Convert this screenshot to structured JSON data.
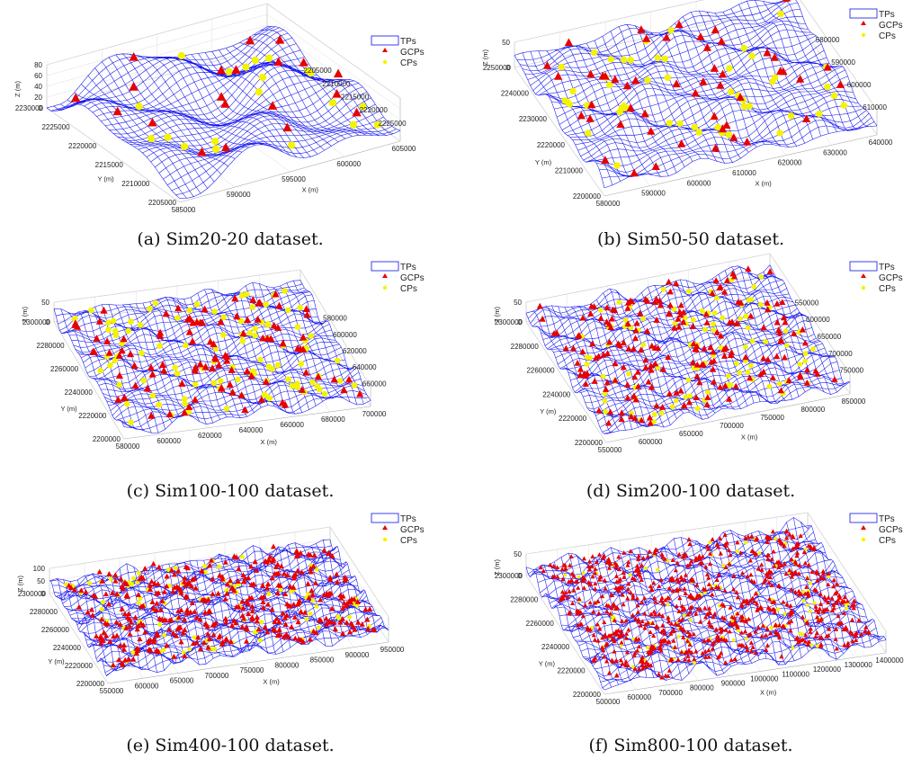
{
  "legend": {
    "tp": "TPs",
    "gcp": "GCPs",
    "cp": "CPs"
  },
  "colors": {
    "mesh": "#1010ee",
    "gcp": "#e80000",
    "cp": "#f4f400",
    "axis": "#222222"
  },
  "chart_data": [
    {
      "type": "surface3d",
      "caption": "(a) Sim20-20 dataset.",
      "xlabel": "X (m)",
      "ylabel": "Y (m)",
      "zlabel": "Z (m)",
      "xticks": [
        585000,
        590000,
        595000,
        600000,
        605000
      ],
      "yticks": [
        2205000,
        2210000,
        2215000,
        2220000,
        2225000,
        2230000
      ],
      "zticks": [
        0,
        20,
        40,
        60,
        80
      ],
      "ryticks": [
        2205000,
        2210000,
        2215000,
        2220000,
        2225000
      ],
      "xlim": [
        585000,
        605000
      ],
      "ylim": [
        2205000,
        2230000
      ],
      "zlim": [
        0,
        80
      ],
      "gcp_count": 20,
      "cp_count": 20,
      "grid": true,
      "legend": "top-right"
    },
    {
      "type": "surface3d",
      "caption": "(b) Sim50-50 dataset.",
      "xlabel": "X (m)",
      "ylabel": "Y (m)",
      "zlabel": "Z (m)",
      "xticks": [
        580000,
        590000,
        600000,
        610000,
        620000,
        630000,
        640000
      ],
      "yticks": [
        2200000,
        2210000,
        2220000,
        2230000,
        2240000,
        2250000
      ],
      "zticks": [
        0,
        50
      ],
      "ryticks": [
        580000,
        590000,
        600000,
        610000
      ],
      "xlim": [
        580000,
        640000
      ],
      "ylim": [
        2200000,
        2250000
      ],
      "zlim": [
        0,
        50
      ],
      "gcp_count": 50,
      "cp_count": 50,
      "grid": true,
      "legend": "top-right"
    },
    {
      "type": "surface3d",
      "caption": "(c) Sim100-100 dataset.",
      "xlabel": "X (m)",
      "ylabel": "Y (m)",
      "zlabel": "Z (m)",
      "xticks": [
        580000,
        600000,
        620000,
        640000,
        660000,
        680000,
        700000
      ],
      "yticks": [
        2200000,
        2220000,
        2240000,
        2260000,
        2280000,
        2300000
      ],
      "zticks": [
        0,
        50
      ],
      "ryticks": [
        580000,
        600000,
        620000,
        640000,
        660000
      ],
      "xlim": [
        580000,
        700000
      ],
      "ylim": [
        2200000,
        2300000
      ],
      "zlim": [
        0,
        50
      ],
      "gcp_count": 100,
      "cp_count": 100,
      "grid": true,
      "legend": "top-right"
    },
    {
      "type": "surface3d",
      "caption": "(d) Sim200-100 dataset.",
      "xlabel": "X (m)",
      "ylabel": "Y (m)",
      "zlabel": "Z (m)",
      "xticks": [
        550000,
        600000,
        650000,
        700000,
        750000,
        800000,
        850000
      ],
      "yticks": [
        2200000,
        2220000,
        2240000,
        2260000,
        2280000,
        2300000
      ],
      "zticks": [
        0,
        50
      ],
      "ryticks": [
        550000,
        600000,
        650000,
        700000,
        750000
      ],
      "xlim": [
        550000,
        850000
      ],
      "ylim": [
        2200000,
        2300000
      ],
      "zlim": [
        0,
        50
      ],
      "gcp_count": 200,
      "cp_count": 100,
      "grid": true,
      "legend": "top-right"
    },
    {
      "type": "surface3d",
      "caption": "(e) Sim400-100 dataset.",
      "xlabel": "X (m)",
      "ylabel": "Y (m)",
      "zlabel": "Z (m)",
      "xticks": [
        550000,
        600000,
        650000,
        700000,
        750000,
        800000,
        850000,
        900000,
        950000
      ],
      "yticks": [
        2200000,
        2220000,
        2240000,
        2260000,
        2280000,
        2300000
      ],
      "zticks": [
        0,
        50,
        100
      ],
      "ryticks": [],
      "xlim": [
        550000,
        950000
      ],
      "ylim": [
        2200000,
        2300000
      ],
      "zlim": [
        0,
        100
      ],
      "gcp_count": 400,
      "cp_count": 100,
      "grid": true,
      "legend": "top-right"
    },
    {
      "type": "surface3d",
      "caption": "(f) Sim800-100 dataset.",
      "xlabel": "X (m)",
      "ylabel": "Y (m)",
      "zlabel": "Z (m)",
      "xticks": [
        500000,
        600000,
        700000,
        800000,
        900000,
        1000000,
        1100000,
        1200000,
        1300000,
        1400000
      ],
      "yticks": [
        2200000,
        2220000,
        2240000,
        2260000,
        2280000,
        2300000
      ],
      "zticks": [
        0,
        50
      ],
      "ryticks": [],
      "xlim": [
        500000,
        1400000
      ],
      "ylim": [
        2200000,
        2300000
      ],
      "zlim": [
        0,
        50
      ],
      "gcp_count": 800,
      "cp_count": 100,
      "grid": true,
      "legend": "top-right"
    }
  ]
}
